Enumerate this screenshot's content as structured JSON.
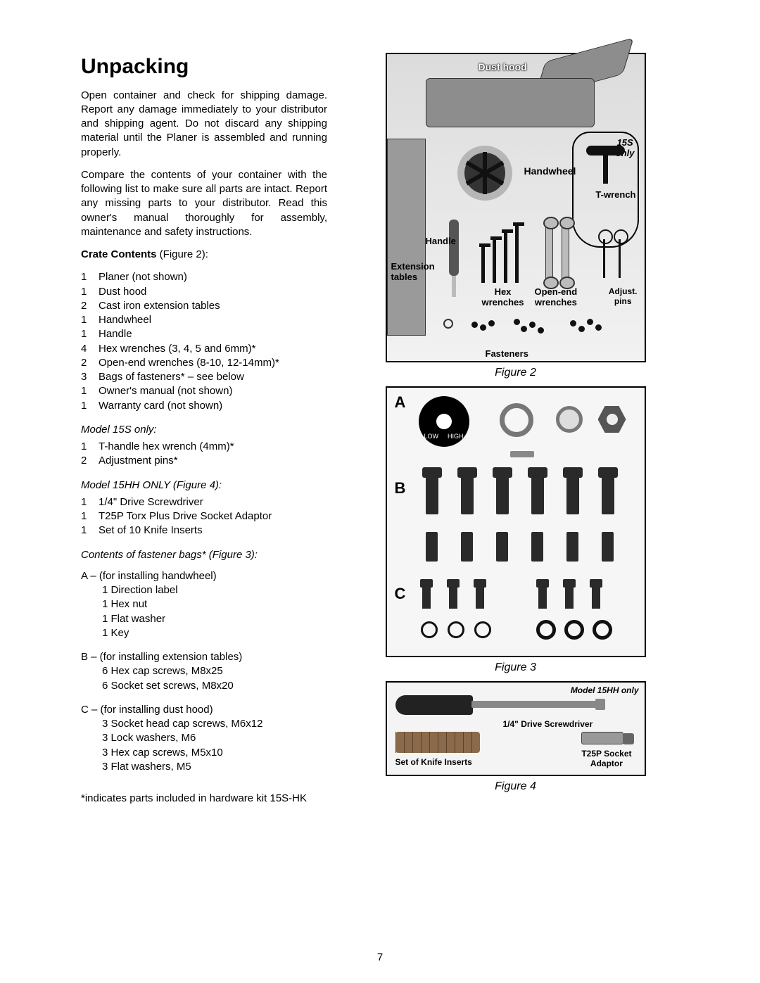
{
  "heading": "Unpacking",
  "para1": "Open container and check for shipping damage. Report any damage immediately to your distributor and shipping agent. Do not discard any shipping material until the Planer is assembled and running properly.",
  "para2": "Compare the contents of your container with the following list to make sure all parts are intact. Report any missing parts to your distributor. Read this owner's manual thoroughly for assembly, maintenance and safety instructions.",
  "crate_label_bold": "Crate Contents",
  "crate_label_rest": " (Figure 2):",
  "crate_items": [
    {
      "qty": "1",
      "desc": "Planer (not shown)"
    },
    {
      "qty": "1",
      "desc": "Dust hood"
    },
    {
      "qty": "2",
      "desc": "Cast iron extension tables"
    },
    {
      "qty": "1",
      "desc": "Handwheel"
    },
    {
      "qty": "1",
      "desc": "Handle"
    },
    {
      "qty": "4",
      "desc": "Hex wrenches (3, 4, 5 and 6mm)*"
    },
    {
      "qty": "2",
      "desc": "Open-end wrenches (8-10, 12-14mm)*"
    },
    {
      "qty": "3",
      "desc": "Bags of fasteners* – see below"
    },
    {
      "qty": "1",
      "desc": "Owner's manual (not shown)"
    },
    {
      "qty": "1",
      "desc": "Warranty card (not shown)"
    }
  ],
  "m15s_head": "Model 15S only:",
  "m15s_items": [
    {
      "qty": "1",
      "desc": "T-handle hex wrench (4mm)*"
    },
    {
      "qty": "2",
      "desc": "Adjustment pins*"
    }
  ],
  "m15hh_head": "Model 15HH ONLY (Figure 4):",
  "m15hh_items": [
    {
      "qty": "1",
      "desc": "1/4\" Drive Screwdriver"
    },
    {
      "qty": "1",
      "desc": "T25P Torx Plus Drive Socket Adaptor"
    },
    {
      "qty": "1",
      "desc": "Set of 10 Knife Inserts"
    }
  ],
  "fast_head": "Contents of fastener bags* (Figure 3):",
  "groupA_head": "A – (for installing handwheel)",
  "groupA_items": [
    "1 Direction label",
    "1 Hex nut",
    "1 Flat washer",
    "1 Key"
  ],
  "groupB_head": "B – (for installing extension tables)",
  "groupB_items": [
    "6 Hex cap screws, M8x25",
    "6 Socket set screws, M8x20"
  ],
  "groupC_head": "C – (for installing dust hood)",
  "groupC_items": [
    "3 Socket head cap screws, M6x12",
    "3 Lock washers, M6",
    "3 Hex cap screws, M5x10",
    "3 Flat washers, M5"
  ],
  "footnote": "*indicates parts included in hardware kit 15S-HK",
  "fig2_caption": "Figure 2",
  "fig3_caption": "Figure 3",
  "fig4_caption": "Figure 4",
  "fig2_labels": {
    "dusthood": "Dust hood",
    "s15": "15S\nonly",
    "handwheel": "Handwheel",
    "twrench": "T-wrench",
    "handle": "Handle",
    "ext": "Extension\ntables",
    "hex": "Hex\nwrenches",
    "open": "Open-end\nwrenches",
    "pins": "Adjust.\npins",
    "fast": "Fasteners"
  },
  "fig3_labels": {
    "A": "A",
    "B": "B",
    "C": "C",
    "low": "LOW",
    "high": "HIGH"
  },
  "fig4_labels": {
    "model": "Model 15HH only",
    "sdrv": "1/4\" Drive Screwdriver",
    "inserts": "Set of Knife Inserts",
    "socket": "T25P Socket\nAdaptor"
  },
  "page_num": "7"
}
